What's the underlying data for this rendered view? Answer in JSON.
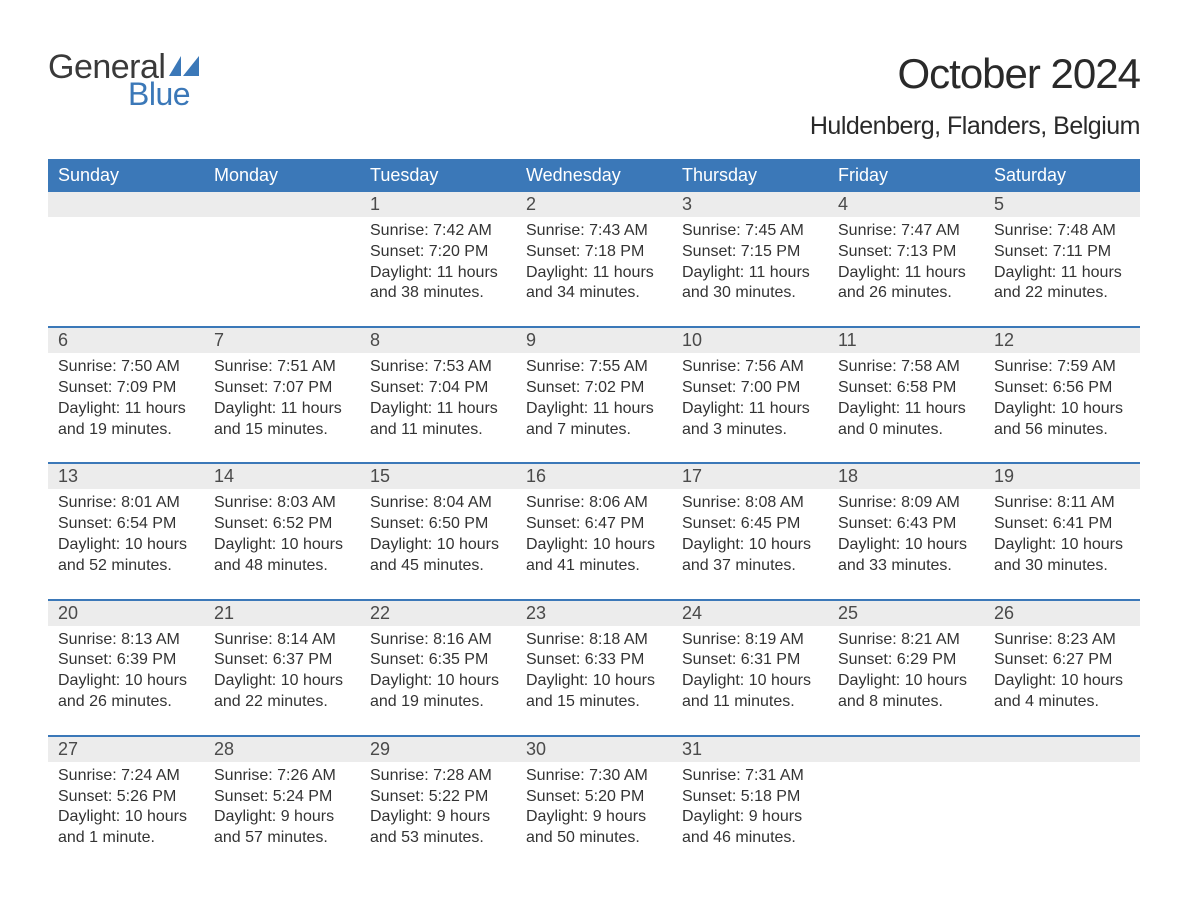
{
  "brand": {
    "word1": "General",
    "word2": "Blue",
    "word1_color": "#3a3a3a",
    "word2_color": "#3b78b8",
    "flag_color": "#3b78b8"
  },
  "header": {
    "month_title": "October 2024",
    "location": "Huldenberg, Flanders, Belgium"
  },
  "colors": {
    "header_bg": "#3b78b8",
    "header_text": "#ffffff",
    "daynum_bg": "#ececec",
    "daynum_text": "#4a4a4a",
    "body_text": "#333333",
    "week_divider": "#3b78b8",
    "page_bg": "#ffffff"
  },
  "typography": {
    "month_title_fontsize": 42,
    "location_fontsize": 25,
    "dow_fontsize": 18,
    "daynum_fontsize": 18,
    "body_fontsize": 16,
    "logo_fontsize": 34
  },
  "days_of_week": [
    "Sunday",
    "Monday",
    "Tuesday",
    "Wednesday",
    "Thursday",
    "Friday",
    "Saturday"
  ],
  "labels": {
    "sunrise": "Sunrise:",
    "sunset": "Sunset:",
    "daylight": "Daylight:"
  },
  "weeks": [
    [
      {
        "n": "",
        "empty": true
      },
      {
        "n": "",
        "empty": true
      },
      {
        "n": "1",
        "sunrise": "7:42 AM",
        "sunset": "7:20 PM",
        "daylight1": "11 hours",
        "daylight2": "and 38 minutes."
      },
      {
        "n": "2",
        "sunrise": "7:43 AM",
        "sunset": "7:18 PM",
        "daylight1": "11 hours",
        "daylight2": "and 34 minutes."
      },
      {
        "n": "3",
        "sunrise": "7:45 AM",
        "sunset": "7:15 PM",
        "daylight1": "11 hours",
        "daylight2": "and 30 minutes."
      },
      {
        "n": "4",
        "sunrise": "7:47 AM",
        "sunset": "7:13 PM",
        "daylight1": "11 hours",
        "daylight2": "and 26 minutes."
      },
      {
        "n": "5",
        "sunrise": "7:48 AM",
        "sunset": "7:11 PM",
        "daylight1": "11 hours",
        "daylight2": "and 22 minutes."
      }
    ],
    [
      {
        "n": "6",
        "sunrise": "7:50 AM",
        "sunset": "7:09 PM",
        "daylight1": "11 hours",
        "daylight2": "and 19 minutes."
      },
      {
        "n": "7",
        "sunrise": "7:51 AM",
        "sunset": "7:07 PM",
        "daylight1": "11 hours",
        "daylight2": "and 15 minutes."
      },
      {
        "n": "8",
        "sunrise": "7:53 AM",
        "sunset": "7:04 PM",
        "daylight1": "11 hours",
        "daylight2": "and 11 minutes."
      },
      {
        "n": "9",
        "sunrise": "7:55 AM",
        "sunset": "7:02 PM",
        "daylight1": "11 hours",
        "daylight2": "and 7 minutes."
      },
      {
        "n": "10",
        "sunrise": "7:56 AM",
        "sunset": "7:00 PM",
        "daylight1": "11 hours",
        "daylight2": "and 3 minutes."
      },
      {
        "n": "11",
        "sunrise": "7:58 AM",
        "sunset": "6:58 PM",
        "daylight1": "11 hours",
        "daylight2": "and 0 minutes."
      },
      {
        "n": "12",
        "sunrise": "7:59 AM",
        "sunset": "6:56 PM",
        "daylight1": "10 hours",
        "daylight2": "and 56 minutes."
      }
    ],
    [
      {
        "n": "13",
        "sunrise": "8:01 AM",
        "sunset": "6:54 PM",
        "daylight1": "10 hours",
        "daylight2": "and 52 minutes."
      },
      {
        "n": "14",
        "sunrise": "8:03 AM",
        "sunset": "6:52 PM",
        "daylight1": "10 hours",
        "daylight2": "and 48 minutes."
      },
      {
        "n": "15",
        "sunrise": "8:04 AM",
        "sunset": "6:50 PM",
        "daylight1": "10 hours",
        "daylight2": "and 45 minutes."
      },
      {
        "n": "16",
        "sunrise": "8:06 AM",
        "sunset": "6:47 PM",
        "daylight1": "10 hours",
        "daylight2": "and 41 minutes."
      },
      {
        "n": "17",
        "sunrise": "8:08 AM",
        "sunset": "6:45 PM",
        "daylight1": "10 hours",
        "daylight2": "and 37 minutes."
      },
      {
        "n": "18",
        "sunrise": "8:09 AM",
        "sunset": "6:43 PM",
        "daylight1": "10 hours",
        "daylight2": "and 33 minutes."
      },
      {
        "n": "19",
        "sunrise": "8:11 AM",
        "sunset": "6:41 PM",
        "daylight1": "10 hours",
        "daylight2": "and 30 minutes."
      }
    ],
    [
      {
        "n": "20",
        "sunrise": "8:13 AM",
        "sunset": "6:39 PM",
        "daylight1": "10 hours",
        "daylight2": "and 26 minutes."
      },
      {
        "n": "21",
        "sunrise": "8:14 AM",
        "sunset": "6:37 PM",
        "daylight1": "10 hours",
        "daylight2": "and 22 minutes."
      },
      {
        "n": "22",
        "sunrise": "8:16 AM",
        "sunset": "6:35 PM",
        "daylight1": "10 hours",
        "daylight2": "and 19 minutes."
      },
      {
        "n": "23",
        "sunrise": "8:18 AM",
        "sunset": "6:33 PM",
        "daylight1": "10 hours",
        "daylight2": "and 15 minutes."
      },
      {
        "n": "24",
        "sunrise": "8:19 AM",
        "sunset": "6:31 PM",
        "daylight1": "10 hours",
        "daylight2": "and 11 minutes."
      },
      {
        "n": "25",
        "sunrise": "8:21 AM",
        "sunset": "6:29 PM",
        "daylight1": "10 hours",
        "daylight2": "and 8 minutes."
      },
      {
        "n": "26",
        "sunrise": "8:23 AM",
        "sunset": "6:27 PM",
        "daylight1": "10 hours",
        "daylight2": "and 4 minutes."
      }
    ],
    [
      {
        "n": "27",
        "sunrise": "7:24 AM",
        "sunset": "5:26 PM",
        "daylight1": "10 hours",
        "daylight2": "and 1 minute."
      },
      {
        "n": "28",
        "sunrise": "7:26 AM",
        "sunset": "5:24 PM",
        "daylight1": "9 hours",
        "daylight2": "and 57 minutes."
      },
      {
        "n": "29",
        "sunrise": "7:28 AM",
        "sunset": "5:22 PM",
        "daylight1": "9 hours",
        "daylight2": "and 53 minutes."
      },
      {
        "n": "30",
        "sunrise": "7:30 AM",
        "sunset": "5:20 PM",
        "daylight1": "9 hours",
        "daylight2": "and 50 minutes."
      },
      {
        "n": "31",
        "sunrise": "7:31 AM",
        "sunset": "5:18 PM",
        "daylight1": "9 hours",
        "daylight2": "and 46 minutes."
      },
      {
        "n": "",
        "empty": true
      },
      {
        "n": "",
        "empty": true
      }
    ]
  ]
}
